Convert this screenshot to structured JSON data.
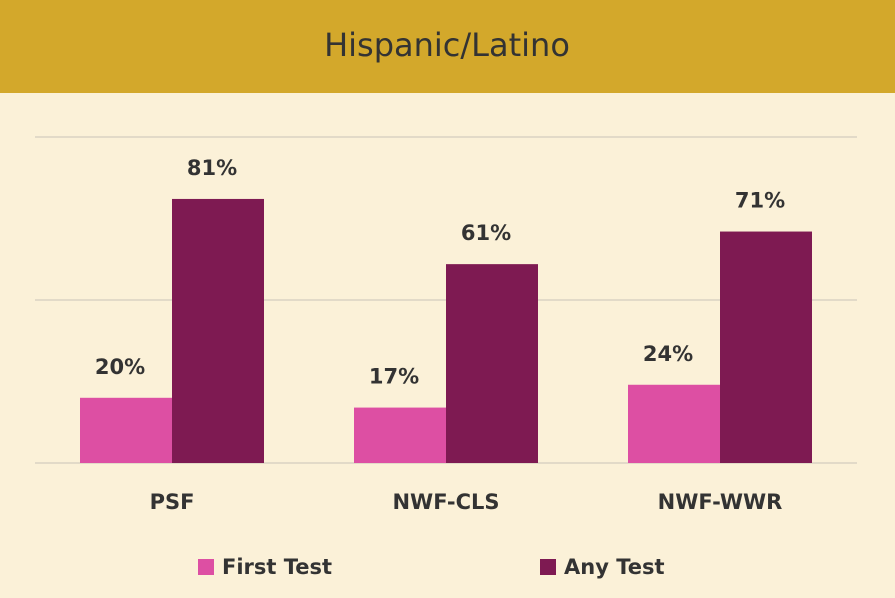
{
  "chart_data": {
    "type": "bar",
    "title": "Hispanic/Latino",
    "categories": [
      "PSF",
      "NWF-CLS",
      "NWF-WWR"
    ],
    "series": [
      {
        "name": "First Test",
        "color": "#dd4fa3",
        "values": [
          20,
          17,
          24
        ],
        "value_labels": [
          "20%",
          "17%",
          "24%"
        ]
      },
      {
        "name": "Any Test",
        "color": "#7e1a52",
        "values": [
          81,
          61,
          71
        ],
        "value_labels": [
          "81%",
          "61%",
          "71%"
        ]
      }
    ],
    "ylim": [
      0,
      100
    ],
    "yticks": [
      0,
      50,
      100
    ],
    "grid": true,
    "legend": "bottom"
  }
}
